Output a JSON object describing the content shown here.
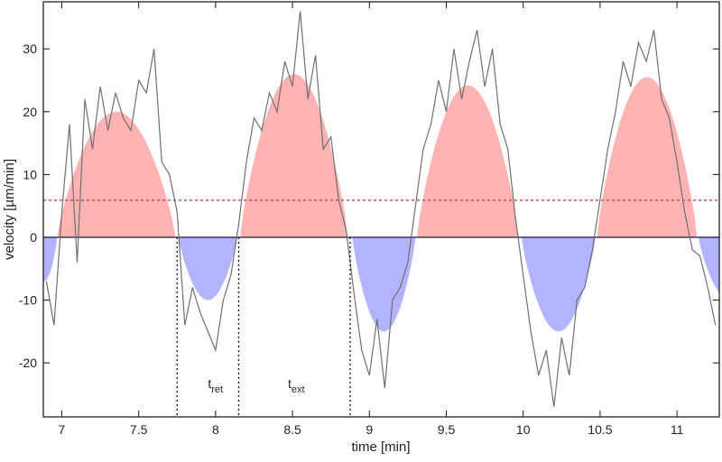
{
  "chart_data": {
    "type": "area",
    "xlabel": "time [min]",
    "ylabel": "velocity [µm/min]",
    "xlim": [
      6.88,
      11.275
    ],
    "ylim": [
      -28.6,
      37.5
    ],
    "xticks": [
      7,
      7.5,
      8,
      8.5,
      9,
      9.5,
      10,
      10.5,
      11
    ],
    "xtick_labels": [
      "7",
      "7.5",
      "8",
      "8.5",
      "9",
      "9.5",
      "10",
      "10.5",
      "11"
    ],
    "yticks": [
      -20,
      -10,
      0,
      10,
      20,
      30
    ],
    "ytick_labels": [
      "-20",
      "-10",
      "0",
      "10",
      "20",
      "30"
    ],
    "grid": false,
    "threshold": {
      "value": 5.9,
      "color": "#c0392b",
      "style": "dotted"
    },
    "colors": {
      "positive": "#ffb3b3",
      "negative": "#b3b3ff",
      "raw": "#707070",
      "zero_line": "#1a1a3a"
    },
    "smoothed_segments": [
      {
        "start": 6.8,
        "end": 6.97,
        "peak": -7
      },
      {
        "start": 6.97,
        "end": 7.74,
        "peak": 20
      },
      {
        "start": 7.76,
        "end": 8.14,
        "peak": -10
      },
      {
        "start": 8.16,
        "end": 8.86,
        "peak": 26
      },
      {
        "start": 8.89,
        "end": 9.3,
        "peak": -15
      },
      {
        "start": 9.31,
        "end": 9.97,
        "peak": 24.2
      },
      {
        "start": 9.99,
        "end": 10.47,
        "peak": -15
      },
      {
        "start": 10.48,
        "end": 11.13,
        "peak": 25.5
      },
      {
        "start": 11.14,
        "end": 11.55,
        "peak": -10
      }
    ],
    "raw_series": {
      "x_start": 6.9,
      "x_step": 0.05,
      "values": [
        -7,
        -14,
        4,
        18,
        -4,
        22,
        14,
        24,
        17,
        23,
        19,
        17,
        25,
        23,
        30,
        12,
        10,
        4,
        -14,
        -8,
        -12,
        -15,
        -18,
        -10,
        -6,
        2,
        12,
        19,
        17,
        23,
        20,
        28,
        24,
        36,
        22,
        29,
        14,
        16,
        6,
        1,
        -9,
        -18,
        -22,
        -13,
        -24,
        -10,
        -8,
        -4,
        5,
        14,
        18,
        25,
        20,
        30,
        22,
        28,
        33,
        24,
        30,
        18,
        14,
        3,
        -6,
        -15,
        -22,
        -18,
        -27,
        -16,
        -22,
        -10,
        -8,
        -2,
        6,
        14,
        20,
        28,
        24,
        31,
        28,
        33,
        22,
        19,
        12,
        4,
        -2,
        -3,
        -8,
        -14
      ]
    },
    "markers": [
      7.75,
      8.15,
      8.875
    ],
    "annotations": [
      {
        "base": "t",
        "sub": "ret",
        "x": 7.95,
        "y": -24
      },
      {
        "base": "t",
        "sub": "ext",
        "x": 8.47,
        "y": -24
      }
    ]
  }
}
